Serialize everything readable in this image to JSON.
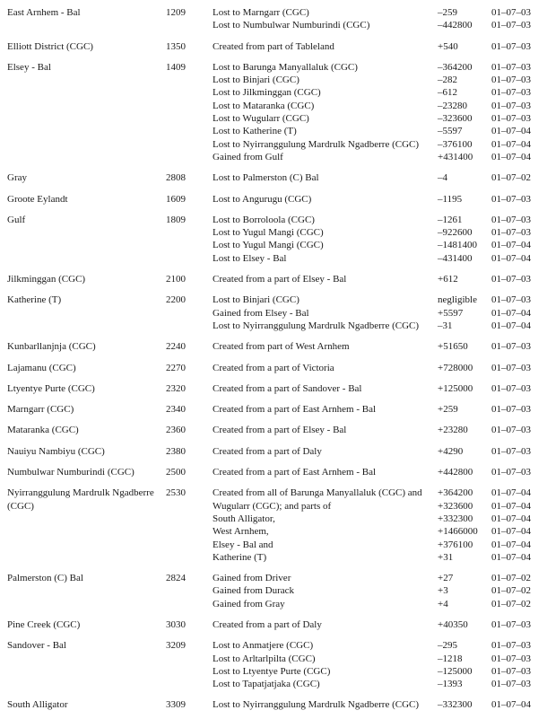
{
  "table": {
    "entries": [
      {
        "name": "East Arnhem - Bal",
        "code": "1209",
        "changes": [
          {
            "description": "Lost to Marngarr (CGC)",
            "value": "–259",
            "date": "01–07–03"
          },
          {
            "description": "Lost to Numbulwar Numburindi (CGC)",
            "value": "–442800",
            "date": "01–07–03"
          }
        ]
      },
      {
        "name": "Elliott District (CGC)",
        "code": "1350",
        "changes": [
          {
            "description": "Created from part of Tableland",
            "value": "+540",
            "date": "01–07–03"
          }
        ]
      },
      {
        "name": "Elsey - Bal",
        "code": "1409",
        "changes": [
          {
            "description": "Lost to Barunga Manyallaluk (CGC)",
            "value": "–364200",
            "date": "01–07–03"
          },
          {
            "description": "Lost to Binjari (CGC)",
            "value": "–282",
            "date": "01–07–03"
          },
          {
            "description": "Lost to Jilkminggan (CGC)",
            "value": "–612",
            "date": "01–07–03"
          },
          {
            "description": "Lost to Mataranka (CGC)",
            "value": "–23280",
            "date": "01–07–03"
          },
          {
            "description": "Lost to Wugularr (CGC)",
            "value": "–323600",
            "date": "01–07–03"
          },
          {
            "description": "Lost to Katherine (T)",
            "value": "–5597",
            "date": "01–07–04"
          },
          {
            "description": "Lost to Nyirranggulung Mardrulk Ngadberre (CGC)",
            "value": "–376100",
            "date": "01–07–04"
          },
          {
            "description": "Gained from Gulf",
            "value": "+431400",
            "date": "01–07–04"
          }
        ]
      },
      {
        "name": "Gray",
        "code": "2808",
        "changes": [
          {
            "description": "Lost to Palmerston (C) Bal",
            "value": "–4",
            "date": "01–07–02"
          }
        ]
      },
      {
        "name": "Groote Eylandt",
        "code": "1609",
        "changes": [
          {
            "description": "Lost to Angurugu (CGC)",
            "value": "–1195",
            "date": "01–07–03"
          }
        ]
      },
      {
        "name": "Gulf",
        "code": "1809",
        "changes": [
          {
            "description": "Lost to Borroloola (CGC)",
            "value": "–1261",
            "date": "01–07–03"
          },
          {
            "description": "Lost to Yugul Mangi (CGC)",
            "value": "–922600",
            "date": "01–07–03"
          },
          {
            "description": "Lost to Yugul Mangi (CGC)",
            "value": "–1481400",
            "date": "01–07–04"
          },
          {
            "description": "Lost to Elsey - Bal",
            "value": "–431400",
            "date": "01–07–04"
          }
        ]
      },
      {
        "name": "Jilkminggan (CGC)",
        "code": "2100",
        "changes": [
          {
            "description": "Created from a part of Elsey - Bal",
            "value": "+612",
            "date": "01–07–03"
          }
        ]
      },
      {
        "name": "Katherine (T)",
        "code": "2200",
        "changes": [
          {
            "description": "Lost to Binjari (CGC)",
            "value": "negligible",
            "date": "01–07–03"
          },
          {
            "description": "Gained from Elsey - Bal",
            "value": "+5597",
            "date": "01–07–04"
          },
          {
            "description": "Lost to Nyirranggulung Mardrulk Ngadberre (CGC)",
            "value": "–31",
            "date": "01–07–04"
          }
        ]
      },
      {
        "name": "Kunbarllanjnja (CGC)",
        "code": "2240",
        "changes": [
          {
            "description": "Created from part of West Arnhem",
            "value": "+51650",
            "date": "01–07–03"
          }
        ]
      },
      {
        "name": "Lajamanu (CGC)",
        "code": "2270",
        "changes": [
          {
            "description": "Created from a part of Victoria",
            "value": "+728000",
            "date": "01–07–03"
          }
        ]
      },
      {
        "name": "Ltyentye Purte (CGC)",
        "code": "2320",
        "changes": [
          {
            "description": "Created from a part of Sandover - Bal",
            "value": "+125000",
            "date": "01–07–03"
          }
        ]
      },
      {
        "name": "Marngarr (CGC)",
        "code": "2340",
        "changes": [
          {
            "description": "Created from a part of East Arnhem - Bal",
            "value": "+259",
            "date": "01–07–03"
          }
        ]
      },
      {
        "name": "Mataranka (CGC)",
        "code": "2360",
        "changes": [
          {
            "description": "Created from a part of Elsey - Bal",
            "value": "+23280",
            "date": "01–07–03"
          }
        ]
      },
      {
        "name": "Nauiyu Nambiyu (CGC)",
        "code": "2380",
        "changes": [
          {
            "description": "Created from a part of Daly",
            "value": "+4290",
            "date": "01–07–03"
          }
        ]
      },
      {
        "name": "Numbulwar Numburindi (CGC)",
        "code": "2500",
        "changes": [
          {
            "description": "Created from a part of East Arnhem - Bal",
            "value": "+442800",
            "date": "01–07–03"
          }
        ]
      },
      {
        "name": "Nyirranggulung Mardrulk Ngadberre (CGC)",
        "code": "2530",
        "changes": [
          {
            "description": "Created from all of Barunga Manyallaluk (CGC) and",
            "value": "+364200",
            "date": "01–07–04"
          },
          {
            "description": "Wugularr (CGC); and parts of",
            "value": "+323600",
            "date": "01–07–04"
          },
          {
            "description": "South Alligator,",
            "value": "+332300",
            "date": "01–07–04"
          },
          {
            "description": "West Arnhem,",
            "value": "+1466000",
            "date": "01–07–04"
          },
          {
            "description": "Elsey - Bal and",
            "value": "+376100",
            "date": "01–07–04"
          },
          {
            "description": "Katherine (T)",
            "value": "+31",
            "date": "01–07–04"
          }
        ]
      },
      {
        "name": "Palmerston (C) Bal",
        "code": "2824",
        "changes": [
          {
            "description": "Gained from Driver",
            "value": "+27",
            "date": "01–07–02"
          },
          {
            "description": "Gained from Durack",
            "value": "+3",
            "date": "01–07–02"
          },
          {
            "description": "Gained from Gray",
            "value": "+4",
            "date": "01–07–02"
          }
        ]
      },
      {
        "name": "Pine Creek (CGC)",
        "code": "3030",
        "changes": [
          {
            "description": "Created from a part of Daly",
            "value": "+40350",
            "date": "01–07–03"
          }
        ]
      },
      {
        "name": "Sandover - Bal",
        "code": "3209",
        "changes": [
          {
            "description": "Lost to Anmatjere (CGC)",
            "value": "–295",
            "date": "01–07–03"
          },
          {
            "description": "Lost to Arltarlpilta (CGC)",
            "value": "–1218",
            "date": "01–07–03"
          },
          {
            "description": "Lost to Ltyentye Purte (CGC)",
            "value": "–125000",
            "date": "01–07–03"
          },
          {
            "description": "Lost to Tapatjatjaka (CGC)",
            "value": "–1393",
            "date": "01–07–03"
          }
        ]
      },
      {
        "name": "South Alligator",
        "code": "3309",
        "changes": [
          {
            "description": "Lost to Nyirranggulung Mardrulk Ngadberre (CGC)",
            "value": "–332300",
            "date": "01–07–04"
          }
        ]
      }
    ]
  }
}
